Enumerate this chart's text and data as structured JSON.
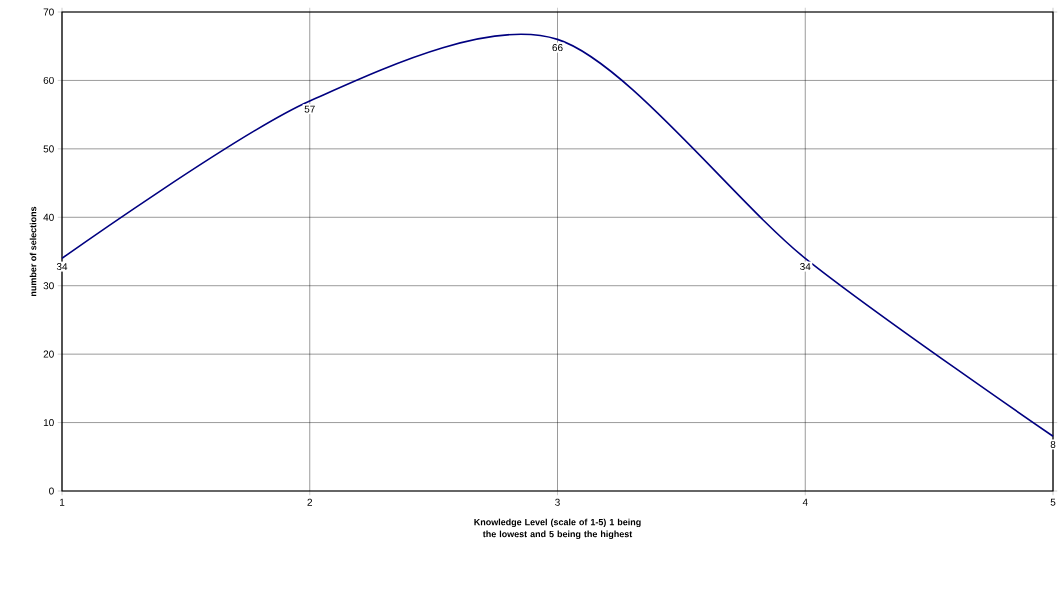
{
  "chart_data": {
    "type": "line",
    "xlabel": "Knowledge Level (scale of 1-5) 1 being the lowest and 5 being the highest",
    "ylabel": "number of selections",
    "x": [
      1,
      2,
      3,
      4,
      5
    ],
    "series": [
      {
        "color": "#000080",
        "values": [
          34,
          57,
          66,
          34,
          8
        ]
      }
    ],
    "xlim": [
      1,
      5
    ],
    "xticks": [
      1,
      2,
      3,
      4,
      5
    ],
    "ylim": [
      0,
      70
    ],
    "yticks": [
      0,
      10,
      20,
      30,
      40,
      50,
      60,
      70
    ],
    "grid": true,
    "data_labels": true,
    "marker": "none",
    "line_style": "solid"
  }
}
